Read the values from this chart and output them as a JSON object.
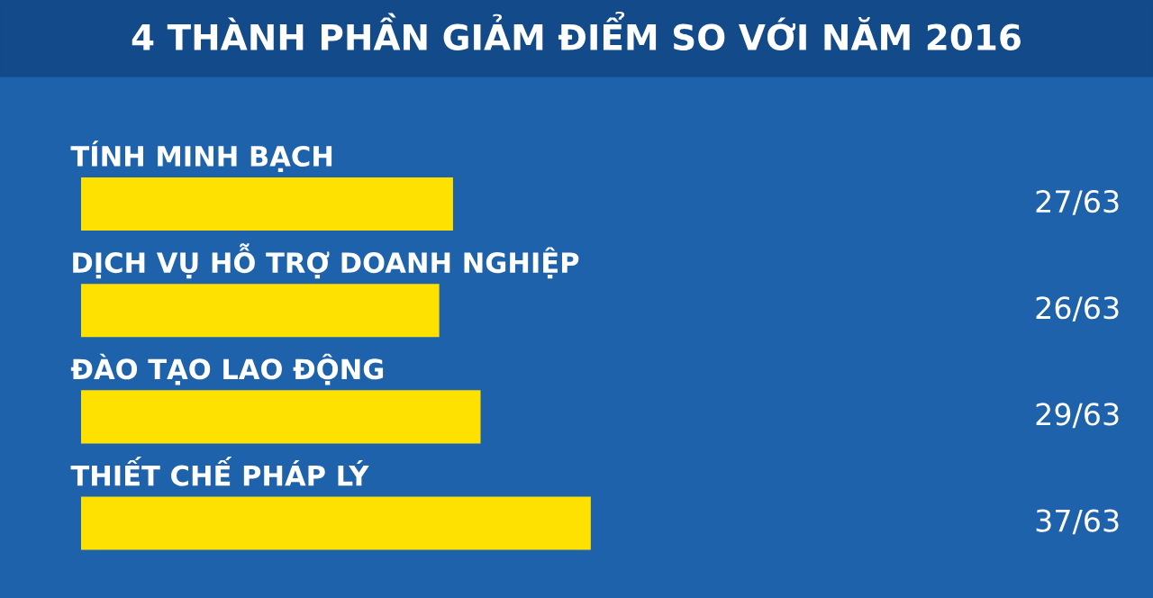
{
  "chart_data": {
    "type": "bar",
    "orientation": "horizontal",
    "title": "4 THÀNH PHẦN GIẢM ĐIỂM SO VỚI NĂM 2016",
    "categories": [
      "TÍNH MINH BẠCH",
      "DỊCH VỤ HỖ TRỢ DOANH NGHIỆP",
      "ĐÀO TẠO LAO ĐỘNG",
      "THIẾT CHẾ PHÁP LÝ"
    ],
    "values": [
      27,
      26,
      29,
      37
    ],
    "value_labels": [
      "27/63",
      "26/63",
      "29/63",
      "37/63"
    ],
    "color": "#ffe100"
  }
}
